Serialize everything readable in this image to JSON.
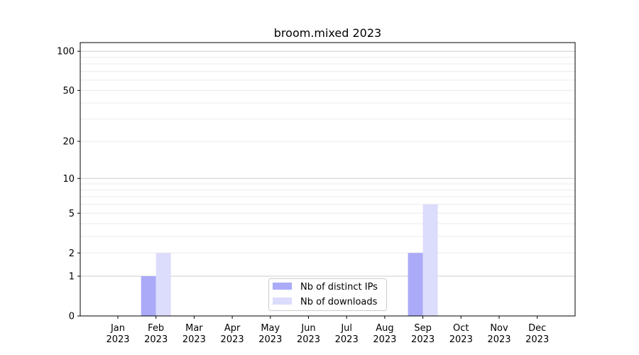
{
  "chart_data": {
    "type": "bar",
    "title": "broom.mixed 2023",
    "xlabel": "",
    "ylabel": "",
    "yscale": "symlog (log of 1+y)",
    "ylim": [
      0,
      117
    ],
    "yticks": [
      0,
      1,
      2,
      5,
      10,
      20,
      50,
      100
    ],
    "grid": true,
    "legend_position": "bottom-center",
    "categories": [
      "Jan\n2023",
      "Feb\n2023",
      "Mar\n2023",
      "Apr\n2023",
      "May\n2023",
      "Jun\n2023",
      "Jul\n2023",
      "Aug\n2023",
      "Sep\n2023",
      "Oct\n2023",
      "Nov\n2023",
      "Dec\n2023"
    ],
    "series": [
      {
        "name": "Nb of distinct IPs",
        "color": "#aaaaf8",
        "values": [
          0,
          1,
          0,
          0,
          0,
          0,
          0,
          0,
          2,
          0,
          0,
          0
        ]
      },
      {
        "name": "Nb of downloads",
        "color": "#dcdcfc",
        "values": [
          0,
          2,
          0,
          0,
          0,
          0,
          0,
          0,
          6,
          0,
          0,
          0
        ]
      }
    ]
  }
}
